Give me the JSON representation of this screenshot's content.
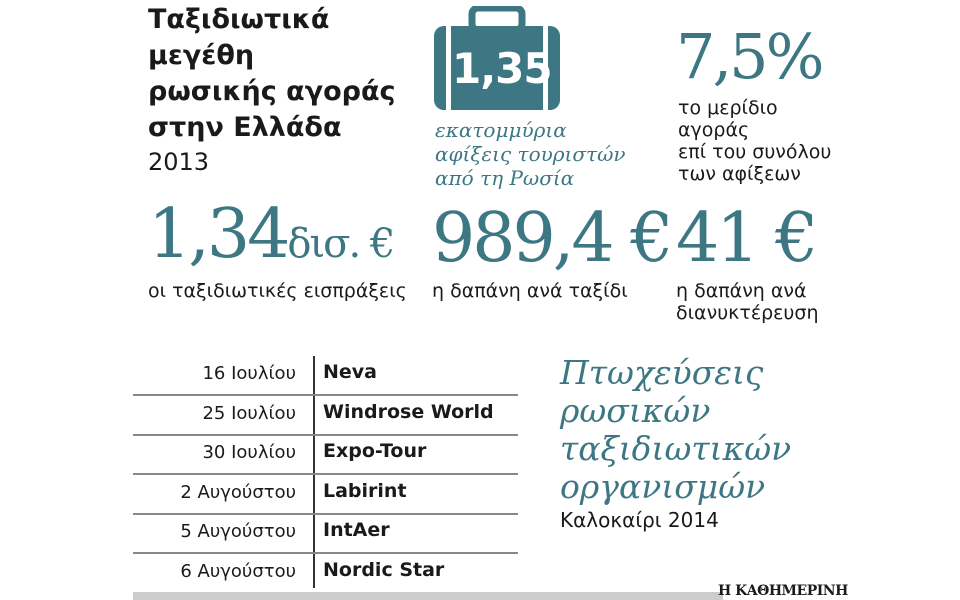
{
  "header": {
    "title_lines": [
      "Ταξιδιωτικά",
      "μεγέθη",
      "ρωσικής αγοράς",
      "στην Ελλάδα"
    ],
    "year": "2013"
  },
  "stats": [
    {
      "number": "1,35",
      "caption_lines": [
        "εκατομμύρια",
        "αφίξεις τουριστών",
        "από τη Ρωσία"
      ]
    },
    {
      "number": "7,5%",
      "caption_lines": [
        "το μερίδιο",
        "αγοράς",
        "επί του συνόλου",
        "των αφίξεων"
      ]
    },
    {
      "number": "1,34",
      "unit": "δισ. €",
      "caption_lines": [
        "οι ταξιδιωτικές εισπράξεις"
      ]
    },
    {
      "number": "989,4 €",
      "caption_lines": [
        "η δαπάνη ανά ταξίδι"
      ]
    },
    {
      "number": "41 €",
      "caption_lines": [
        "η δαπάνη ανά",
        "διανυκτέρευση"
      ]
    }
  ],
  "table": {
    "rows": [
      [
        "16 Ιουλίου",
        "Neva"
      ],
      [
        "25 Ιουλίου",
        "Windrose World"
      ],
      [
        "30 Ιουλίου",
        "Expo-Tour"
      ],
      [
        "2 Αυγούστου",
        "Labirint"
      ],
      [
        "5 Αυγούστου",
        "IntAer"
      ],
      [
        "6 Αυγούστου",
        "Nordic Star"
      ]
    ]
  },
  "sidebar": {
    "title_lines": [
      "Πτωχεύσεις",
      "ρωσικών",
      "ταξιδιωτικών",
      "οργανισμών"
    ],
    "subtitle": "Καλοκαίρι 2014"
  },
  "footer": {
    "brand": "Η ΚΑΘΗΜΕΡΙΝΗ"
  }
}
